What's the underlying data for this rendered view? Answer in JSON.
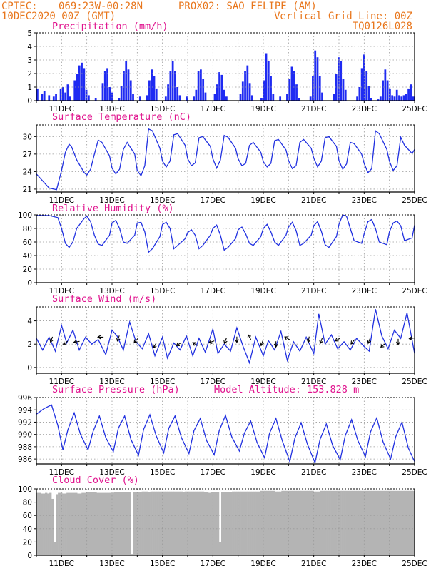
{
  "header": {
    "source": "CPTEC:",
    "coords": "069:23W-00:28N",
    "station": "PROX02: SAO FELIPE (AM)",
    "date": "10DEC2020 00Z (GMT)",
    "grid_note": "Vertical Grid Line: 00Z",
    "model_code": "TQ0126L028"
  },
  "colors": {
    "header": "#e8761c",
    "title": "#e0138e",
    "series": "#2030e0",
    "precip": "#1f2bf2",
    "cloud": "#b4b4b4"
  },
  "time_axis": {
    "start": "10DEC2020 00Z",
    "end": "25DEC2020 00Z",
    "days": 15,
    "tick_labels": [
      "11DEC",
      "13DEC",
      "15DEC",
      "17DEC",
      "19DEC",
      "21DEC",
      "23DEC",
      "25DEC"
    ],
    "tick_days": [
      1,
      3,
      5,
      7,
      9,
      11,
      13,
      15
    ]
  },
  "model_altitude": "Model Altitude: 153.828 m",
  "chart_data": [
    {
      "id": "precip",
      "type": "bar",
      "title": "Precipitation (mm/h)",
      "ylim": [
        0,
        5
      ],
      "yticks": [
        0,
        1,
        2,
        3,
        4,
        5
      ],
      "step_hours": 3,
      "values": [
        0.9,
        0,
        0.5,
        0.7,
        0,
        0.4,
        0,
        0.3,
        0.5,
        0,
        0.9,
        1,
        0.6,
        1.2,
        0.3,
        0,
        1.5,
        2,
        2.6,
        2.8,
        2.4,
        0.8,
        0.4,
        0,
        0,
        0.2,
        0,
        0,
        1.3,
        2.2,
        2.4,
        1,
        0.6,
        0,
        0,
        0.2,
        1.1,
        2.2,
        2.9,
        2.3,
        1.5,
        0.5,
        0,
        0,
        0.3,
        0,
        0,
        0.4,
        1.5,
        2.3,
        1.8,
        0.9,
        0,
        0,
        0,
        0.3,
        1.2,
        2.2,
        2.9,
        2.2,
        1,
        0.4,
        0,
        0,
        0.3,
        0,
        0,
        0.3,
        0.8,
        2.2,
        2.3,
        1.6,
        0.6,
        0,
        0,
        0,
        0.5,
        1.2,
        2.1,
        1.9,
        0.8,
        0.3,
        0,
        0,
        0,
        0,
        0,
        0.5,
        1.4,
        2.2,
        2.6,
        1.3,
        0.4,
        0,
        0,
        0,
        0.2,
        1.5,
        3.5,
        2.9,
        1.8,
        0.5,
        0,
        0,
        0.3,
        0,
        0,
        0.5,
        1.6,
        2.5,
        2.2,
        1.2,
        0.2,
        0,
        0,
        0,
        0,
        0.3,
        1.8,
        3.7,
        3.2,
        1.8,
        0.6,
        0,
        0,
        0,
        0,
        0.5,
        2,
        3.2,
        2.9,
        1.6,
        0.8,
        0,
        0,
        0,
        0,
        0.3,
        1,
        2.4,
        3.4,
        2.2,
        1.1,
        0.2,
        0,
        0,
        0.1,
        0.3,
        1.5,
        2.3,
        1.5,
        0.9,
        0.4,
        0.3,
        0.8,
        0.4,
        0.3,
        0.4,
        0.5,
        0.9,
        1.2,
        0.3
      ]
    },
    {
      "id": "temperature",
      "type": "line",
      "title": "Surface Temperature (nC)",
      "ylim": [
        20.5,
        32
      ],
      "yticks": [
        21,
        24,
        27,
        30
      ],
      "x_day": [
        0,
        0.5,
        0.8,
        1,
        1.15,
        1.3,
        1.4,
        1.6,
        1.9,
        2,
        2.15,
        2.3,
        2.45,
        2.6,
        2.9,
        3,
        3.15,
        3.3,
        3.45,
        3.6,
        3.9,
        4,
        4.15,
        4.3,
        4.45,
        4.6,
        4.9,
        5,
        5.15,
        5.3,
        5.45,
        5.6,
        5.9,
        6,
        6.15,
        6.3,
        6.45,
        6.6,
        6.9,
        7,
        7.15,
        7.3,
        7.45,
        7.6,
        7.9,
        8,
        8.15,
        8.3,
        8.45,
        8.6,
        8.9,
        9,
        9.15,
        9.3,
        9.45,
        9.6,
        9.9,
        10,
        10.15,
        10.3,
        10.45,
        10.6,
        10.9,
        11,
        11.15,
        11.3,
        11.45,
        11.6,
        11.9,
        12,
        12.15,
        12.3,
        12.45,
        12.6,
        12.9,
        13,
        13.15,
        13.3,
        13.45,
        13.6,
        13.9,
        14,
        14.15,
        14.3,
        14.45,
        14.6,
        14.9,
        15
      ],
      "values": [
        23.6,
        21.2,
        20.9,
        24.2,
        27.3,
        28.7,
        28.2,
        26,
        23.8,
        23.4,
        24.4,
        27,
        29.4,
        29,
        26.7,
        24.6,
        23.6,
        24.4,
        27.8,
        29,
        27,
        24.2,
        23.3,
        25,
        31.3,
        31,
        28,
        25.8,
        24.8,
        25.8,
        30.3,
        30.5,
        28.5,
        26.2,
        25,
        25.5,
        29.8,
        30,
        28.3,
        26.2,
        24.6,
        26,
        30.2,
        29.9,
        28,
        26.2,
        25,
        25.4,
        28.5,
        29,
        27.3,
        25.7,
        24.8,
        25.4,
        29.3,
        29.5,
        27.7,
        25.9,
        24.5,
        25,
        29,
        29.5,
        28,
        26.3,
        24.8,
        25.8,
        29.8,
        30,
        28.3,
        25.9,
        24.4,
        25.3,
        29,
        28.8,
        27,
        25.4,
        23.8,
        24.5,
        31,
        30.5,
        27.8,
        25.8,
        24.2,
        25,
        29.9,
        28.5,
        27.1,
        27.8
      ]
    },
    {
      "id": "humidity",
      "type": "line",
      "title": "Relative Humidity (%)",
      "ylim": [
        0,
        100
      ],
      "yticks": [
        0,
        20,
        40,
        60,
        80,
        100
      ],
      "x_day": [
        0,
        0.5,
        0.85,
        1,
        1.15,
        1.3,
        1.45,
        1.6,
        1.9,
        2,
        2.15,
        2.3,
        2.45,
        2.6,
        2.9,
        3,
        3.15,
        3.3,
        3.45,
        3.6,
        3.9,
        4,
        4.15,
        4.3,
        4.45,
        4.6,
        4.9,
        5,
        5.15,
        5.3,
        5.45,
        5.6,
        5.9,
        6,
        6.15,
        6.3,
        6.45,
        6.6,
        6.9,
        7,
        7.15,
        7.3,
        7.45,
        7.6,
        7.9,
        8,
        8.15,
        8.3,
        8.45,
        8.6,
        8.9,
        9,
        9.15,
        9.3,
        9.45,
        9.6,
        9.9,
        10,
        10.15,
        10.3,
        10.45,
        10.6,
        10.9,
        11,
        11.15,
        11.3,
        11.45,
        11.6,
        11.9,
        12,
        12.15,
        12.3,
        12.45,
        12.6,
        12.9,
        13,
        13.15,
        13.3,
        13.45,
        13.6,
        13.9,
        14,
        14.15,
        14.3,
        14.45,
        14.6,
        14.9,
        15
      ],
      "values": [
        99,
        99,
        96,
        80,
        58,
        52,
        60,
        80,
        95,
        98,
        90,
        70,
        57,
        55,
        70,
        88,
        92,
        80,
        60,
        58,
        70,
        88,
        89,
        75,
        45,
        50,
        68,
        86,
        89,
        80,
        50,
        55,
        65,
        74,
        78,
        70,
        50,
        55,
        70,
        80,
        85,
        70,
        48,
        52,
        65,
        78,
        82,
        72,
        58,
        55,
        68,
        80,
        86,
        75,
        60,
        55,
        70,
        82,
        89,
        77,
        55,
        58,
        70,
        84,
        90,
        76,
        56,
        52,
        68,
        86,
        100,
        98,
        80,
        62,
        58,
        72,
        90,
        93,
        80,
        60,
        56,
        75,
        88,
        91,
        84,
        62,
        66,
        85
      ]
    },
    {
      "id": "wind",
      "type": "line",
      "title": "Surface Wind (m/s)",
      "ylim": [
        -0.5,
        5.2
      ],
      "yticks": [
        0,
        2,
        4
      ],
      "x_day": [
        0,
        0.25,
        0.5,
        0.75,
        1,
        1.2,
        1.45,
        1.7,
        1.95,
        2.2,
        2.45,
        2.75,
        3,
        3.2,
        3.45,
        3.7,
        3.95,
        4.2,
        4.45,
        4.7,
        5,
        5.2,
        5.45,
        5.7,
        5.95,
        6.2,
        6.45,
        6.7,
        7,
        7.2,
        7.45,
        7.7,
        7.95,
        8.2,
        8.45,
        8.7,
        9,
        9.2,
        9.45,
        9.7,
        9.95,
        10.2,
        10.45,
        10.7,
        11,
        11.2,
        11.45,
        11.7,
        11.95,
        12.2,
        12.45,
        12.7,
        13,
        13.2,
        13.45,
        13.7,
        13.95,
        14.2,
        14.45,
        14.7,
        15
      ],
      "values": [
        2.5,
        1.5,
        2.6,
        1.4,
        3.6,
        2.1,
        3.2,
        1.5,
        2.6,
        2,
        2.4,
        1.1,
        3.2,
        2.7,
        1.5,
        3.9,
        2.2,
        1.6,
        2.9,
        1,
        2.6,
        0.8,
        2.1,
        1.5,
        2.7,
        1,
        2.5,
        1.3,
        3.3,
        1.2,
        2,
        1.4,
        3.4,
        1.8,
        0.4,
        2.6,
        1,
        2.3,
        1.5,
        3.1,
        0.6,
        2.2,
        1.4,
        2.6,
        1.2,
        4.6,
        2,
        2.8,
        1.6,
        2.2,
        1.5,
        2.5,
        1.8,
        1.4,
        5,
        2.7,
        1.6,
        3.2,
        2.5,
        4.7,
        1.2
      ],
      "arrows": [
        {
          "day": 0.6,
          "speed": 2.4,
          "dir_deg": 200
        },
        {
          "day": 1.15,
          "speed": 2.1,
          "dir_deg": 230
        },
        {
          "day": 1.6,
          "speed": 2.2,
          "dir_deg": 260
        },
        {
          "day": 2.55,
          "speed": 2.6,
          "dir_deg": 270
        },
        {
          "day": 3.25,
          "speed": 2.5,
          "dir_deg": 200
        },
        {
          "day": 3.95,
          "speed": 2.3,
          "dir_deg": 220
        },
        {
          "day": 4.7,
          "speed": 1.9,
          "dir_deg": 210
        },
        {
          "day": 5.65,
          "speed": 2.0,
          "dir_deg": 240
        },
        {
          "day": 6.3,
          "speed": 2.0,
          "dir_deg": 300
        },
        {
          "day": 6.95,
          "speed": 2.2,
          "dir_deg": 250
        },
        {
          "day": 7.5,
          "speed": 2.3,
          "dir_deg": 200
        },
        {
          "day": 7.95,
          "speed": 2.4,
          "dir_deg": 180
        },
        {
          "day": 8.45,
          "speed": 2.6,
          "dir_deg": 330
        },
        {
          "day": 8.95,
          "speed": 2.1,
          "dir_deg": 200
        },
        {
          "day": 9.5,
          "speed": 2.0,
          "dir_deg": 180
        },
        {
          "day": 9.95,
          "speed": 2.5,
          "dir_deg": 300
        },
        {
          "day": 10.8,
          "speed": 2.4,
          "dir_deg": 190
        },
        {
          "day": 11.3,
          "speed": 2.3,
          "dir_deg": 200
        },
        {
          "day": 11.95,
          "speed": 2.4,
          "dir_deg": 240
        },
        {
          "day": 12.55,
          "speed": 2.2,
          "dir_deg": 220
        },
        {
          "day": 13.2,
          "speed": 2.3,
          "dir_deg": 200
        },
        {
          "day": 13.75,
          "speed": 1.9,
          "dir_deg": 230
        },
        {
          "day": 14.35,
          "speed": 2.2,
          "dir_deg": 180
        },
        {
          "day": 14.9,
          "speed": 2.5,
          "dir_deg": 260
        }
      ]
    },
    {
      "id": "pressure",
      "type": "line",
      "title": "Surface Pressure (hPa)",
      "ylim": [
        985.2,
        996
      ],
      "yticks": [
        986,
        988,
        990,
        992,
        994,
        996
      ],
      "x_day": [
        0,
        0.3,
        0.6,
        0.85,
        1.05,
        1.25,
        1.5,
        1.75,
        2.05,
        2.25,
        2.5,
        2.75,
        3.05,
        3.25,
        3.5,
        3.75,
        4.05,
        4.25,
        4.5,
        4.75,
        5.05,
        5.25,
        5.5,
        5.75,
        6.05,
        6.25,
        6.5,
        6.75,
        7.05,
        7.25,
        7.5,
        7.75,
        8.05,
        8.25,
        8.5,
        8.75,
        9.05,
        9.25,
        9.5,
        9.75,
        10.05,
        10.25,
        10.5,
        10.75,
        11.05,
        11.25,
        11.5,
        11.75,
        12.05,
        12.25,
        12.5,
        12.75,
        13.05,
        13.25,
        13.5,
        13.75,
        14.05,
        14.25,
        14.5,
        14.75,
        15
      ],
      "values": [
        993.3,
        994.2,
        994.8,
        991.5,
        987.5,
        990.8,
        993.5,
        990,
        987.5,
        990.5,
        993,
        989.5,
        987.2,
        991,
        993,
        989.2,
        986.6,
        990.8,
        993.2,
        989.8,
        987,
        991,
        993,
        989.5,
        986.9,
        990.6,
        992.6,
        989,
        986.7,
        990.6,
        993.1,
        989.6,
        987.3,
        990.2,
        992.2,
        988.7,
        986.2,
        990.2,
        992.6,
        989,
        985.6,
        989.4,
        991.9,
        988.4,
        985.4,
        989.2,
        991.7,
        988.2,
        985.9,
        989.8,
        992.4,
        989,
        986.4,
        990.4,
        992.7,
        988.8,
        986,
        989.6,
        992,
        987.8,
        985.6
      ]
    },
    {
      "id": "cloud",
      "type": "bar",
      "title": "Cloud Cover (%)",
      "ylim": [
        0,
        100
      ],
      "yticks": [
        0,
        20,
        40,
        60,
        80,
        100
      ],
      "step_hours": 3,
      "values": [
        94,
        94,
        93,
        93,
        94,
        93,
        94,
        85,
        20,
        92,
        94,
        94,
        93,
        93,
        94,
        94,
        94,
        94,
        94,
        93,
        93,
        94,
        94,
        95,
        95,
        95,
        95,
        95,
        94,
        94,
        94,
        94,
        94,
        94,
        94,
        94,
        95,
        95,
        95,
        95,
        95,
        95,
        95,
        95,
        2,
        95,
        95,
        95,
        95,
        96,
        96,
        96,
        95,
        96,
        96,
        96,
        96,
        96,
        96,
        96,
        96,
        96,
        96,
        96,
        96,
        96,
        96,
        96,
        95,
        96,
        96,
        96,
        96,
        96,
        96,
        96,
        96,
        96,
        95,
        95,
        94,
        95,
        95,
        95,
        95,
        20,
        95,
        95,
        95,
        95,
        95,
        96,
        96,
        96,
        96,
        96,
        96,
        96,
        96,
        96,
        96,
        96,
        96,
        96,
        97,
        97,
        97,
        97,
        97,
        97,
        97,
        96,
        96,
        96,
        97,
        97,
        97,
        97,
        97,
        97,
        97,
        97,
        97,
        97,
        97,
        97,
        97,
        97,
        97,
        96,
        96,
        96,
        97,
        97,
        97,
        97,
        97,
        97,
        97,
        97,
        97,
        97,
        97,
        97,
        97,
        97,
        97,
        97,
        97,
        97,
        97,
        97,
        97,
        97,
        97,
        97,
        97,
        97,
        97,
        97,
        97,
        97,
        97,
        97,
        97,
        97,
        97,
        97,
        97,
        97,
        97,
        97,
        97,
        97,
        97,
        97
      ]
    }
  ]
}
